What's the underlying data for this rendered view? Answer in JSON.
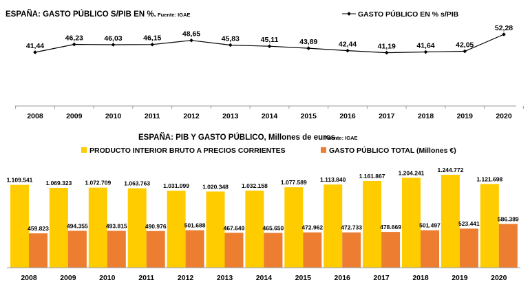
{
  "chart_data": [
    {
      "type": "line",
      "title": "ESPAÑA: GASTO PÚBLICO S/PIB EN %.",
      "source": "Fuente: IGAE",
      "categories": [
        "2008",
        "2009",
        "2010",
        "2011",
        "2012",
        "2013",
        "2014",
        "2015",
        "2016",
        "2017",
        "2018",
        "2019",
        "2020"
      ],
      "series": [
        {
          "name": "GASTO PÚBLICO EN % s/PIB",
          "values": [
            41.44,
            46.23,
            46.03,
            46.15,
            48.65,
            45.83,
            45.11,
            43.89,
            42.44,
            41.19,
            41.64,
            42.05,
            52.28
          ],
          "labels": [
            "41,44",
            "46,23",
            "46,03",
            "46,15",
            "48,65",
            "45,83",
            "45,11",
            "43,89",
            "42,44",
            "41,19",
            "41,64",
            "42,05",
            "52,28"
          ]
        }
      ],
      "legend_position": "top-right",
      "grid": false,
      "colors": {
        "line": "#000000"
      }
    },
    {
      "type": "bar",
      "title": "ESPAÑA: PIB Y GASTO PÚBLICO, Millones de euros.",
      "source": "Fuente: IGAE",
      "categories": [
        "2008",
        "2009",
        "2010",
        "2011",
        "2012",
        "2013",
        "2014",
        "2015",
        "2016",
        "2017",
        "2018",
        "2019",
        "2020"
      ],
      "series": [
        {
          "name": "PRODUCTO INTERIOR BRUTO A PRECIOS CORRIENTES",
          "values": [
            1109541,
            1069323,
            1072709,
            1063763,
            1031099,
            1020348,
            1032158,
            1077589,
            1113840,
            1161867,
            1204241,
            1244772,
            1121698
          ],
          "labels": [
            "1.109.541",
            "1.069.323",
            "1.072.709",
            "1.063.763",
            "1.031.099",
            "1.020.348",
            "1.032.158",
            "1.077.589",
            "1.113.840",
            "1.161.867",
            "1.204.241",
            "1.244.772",
            "1.121.698"
          ]
        },
        {
          "name": "GASTO PÚBLICO TOTAL (Millones €)",
          "values": [
            459823,
            494355,
            493815,
            490976,
            501688,
            467649,
            465650,
            472962,
            472733,
            478669,
            501497,
            523441,
            586389
          ],
          "labels": [
            "459.823",
            "494.355",
            "493.815",
            "490.976",
            "501.688",
            "467.649",
            "465.650",
            "472.962",
            "472.733",
            "478.669",
            "501.497",
            "523.441",
            "586.389"
          ]
        }
      ],
      "legend_position": "top",
      "grid": false,
      "colors": {
        "pib": "#FFCC00",
        "gasto": "#ED7D31"
      }
    }
  ]
}
